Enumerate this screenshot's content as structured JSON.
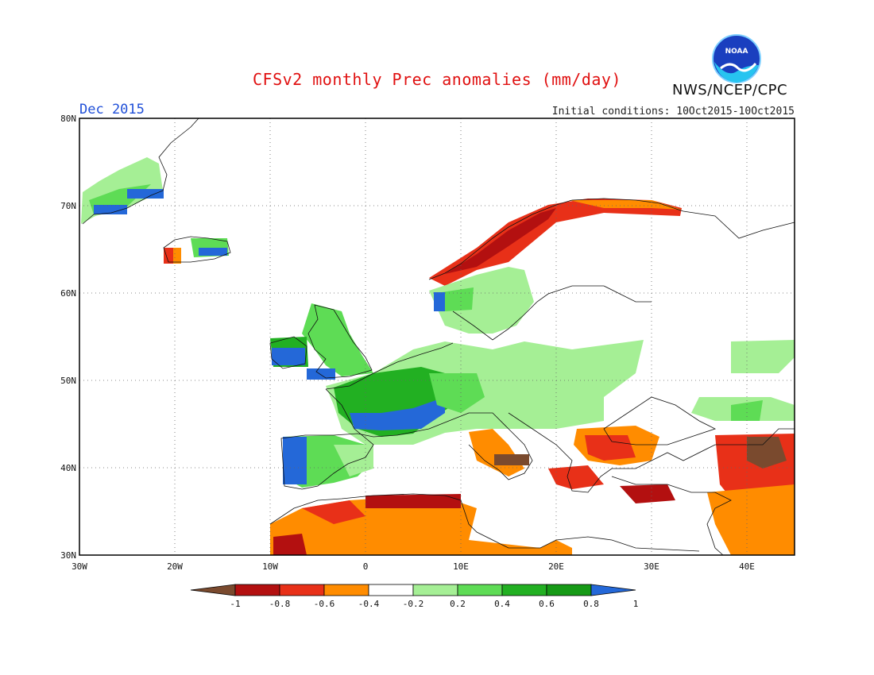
{
  "header": {
    "title": "CFSv2 monthly Prec anomalies (mm/day)",
    "month": "Dec 2015",
    "init_conditions": "Initial conditions: 10Oct2015-10Oct2015",
    "agency": "NWS/NCEP/CPC",
    "logo_text": "NOAA"
  },
  "axes": {
    "lat_labels": [
      "80N",
      "70N",
      "60N",
      "50N",
      "40N",
      "30N"
    ],
    "lon_labels": [
      "30W",
      "20W",
      "10W",
      "0",
      "10E",
      "20E",
      "30E",
      "40E"
    ]
  },
  "colorbar": {
    "tick_labels": [
      "-1",
      "-0.8",
      "-0.6",
      "-0.4",
      "-0.2",
      "0.2",
      "0.4",
      "0.6",
      "0.8",
      "1"
    ],
    "colors": [
      "#7a4a2e",
      "#b31010",
      "#e83018",
      "#ff8c00",
      "#ffffff",
      "#a5ef95",
      "#5edc55",
      "#22b022",
      "#169a16",
      "#2468d8"
    ]
  }
}
